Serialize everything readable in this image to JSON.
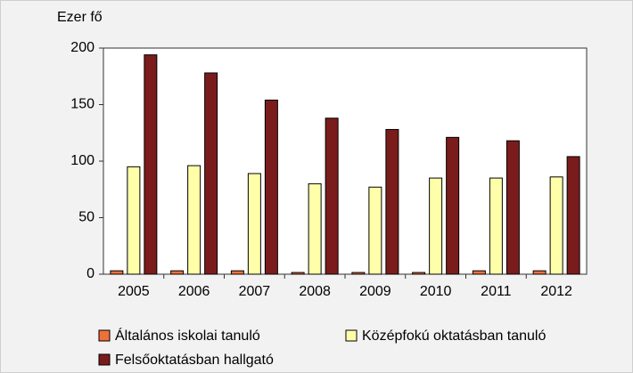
{
  "chart_data": {
    "type": "bar",
    "y_axis_label": "Ezer fő",
    "categories": [
      "2005",
      "2006",
      "2007",
      "2008",
      "2009",
      "2010",
      "2011",
      "2012"
    ],
    "series": [
      {
        "name": "Általános iskolai tanuló",
        "color": "#f0703a",
        "values": [
          3,
          3,
          3,
          1.5,
          1.5,
          1.5,
          3,
          3
        ]
      },
      {
        "name": "Középfokú oktatásban tanuló",
        "color": "#ffffaa",
        "values": [
          95,
          96,
          89,
          80,
          77,
          85,
          85,
          86
        ]
      },
      {
        "name": "Felsőoktatásban hallgató",
        "color": "#7b1c1c",
        "values": [
          194,
          178,
          154,
          138,
          128,
          121,
          118,
          104
        ]
      }
    ],
    "ylim": [
      0,
      200
    ],
    "yticks": [
      0,
      50,
      100,
      150,
      200
    ],
    "grid": false,
    "legend": "bottom"
  }
}
